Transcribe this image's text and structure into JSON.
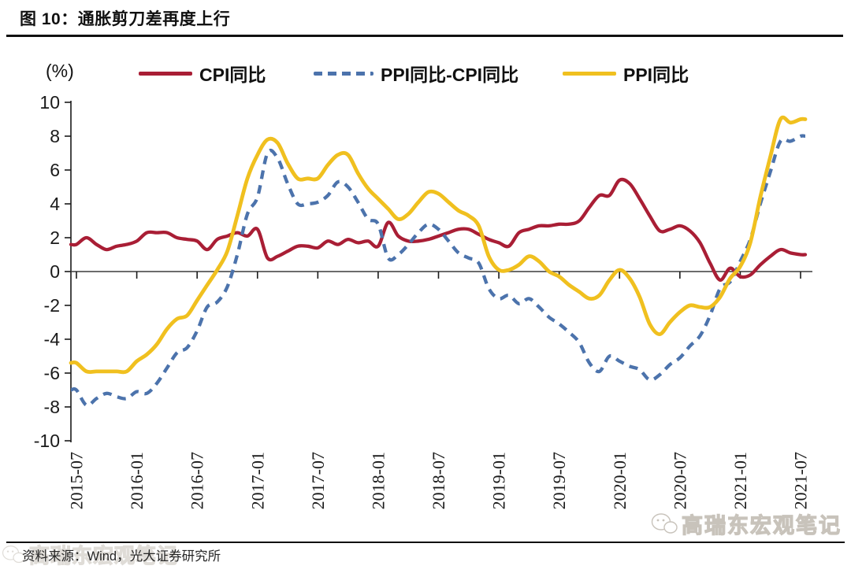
{
  "figure": {
    "title": "图 10：通胀剪刀差再度上行",
    "unit_label": "(%)",
    "source_note": "资料来源：Wind，光大证券研究所",
    "watermark": "高瑞东宏观笔记"
  },
  "legend": [
    {
      "label": "CPI同比",
      "color": "#A91E35",
      "style": "solid"
    },
    {
      "label": "PPI同比-CPI同比",
      "color": "#4C73AC",
      "style": "dashed"
    },
    {
      "label": "PPI同比",
      "color": "#F0C01F",
      "style": "solid"
    }
  ],
  "chart_data": {
    "type": "line",
    "title": "通胀剪刀差再度上行",
    "x_start": "2015-07",
    "x_end": "2021-07",
    "frequency": "monthly",
    "x_tick_labels": [
      "2015-07",
      "2016-01",
      "2016-07",
      "2017-01",
      "2017-07",
      "2018-01",
      "2018-07",
      "2019-01",
      "2019-07",
      "2020-01",
      "2020-07",
      "2021-01",
      "2021-07"
    ],
    "y_ticks": [
      10,
      8,
      6,
      4,
      2,
      0,
      -2,
      -4,
      -6,
      -8,
      -10
    ],
    "ylim": [
      -10,
      10
    ],
    "ylabel": "(%)",
    "grid": false,
    "legend_position": "top",
    "zero_line": true,
    "series": [
      {
        "name": "CPI同比",
        "color": "#A91E35",
        "style": "solid",
        "width": 4.3,
        "values": [
          1.6,
          2.0,
          1.6,
          1.3,
          1.5,
          1.6,
          1.8,
          2.3,
          2.3,
          2.3,
          2.0,
          1.9,
          1.8,
          1.3,
          1.9,
          2.1,
          2.3,
          2.1,
          2.5,
          0.8,
          0.9,
          1.2,
          1.5,
          1.5,
          1.4,
          1.8,
          1.6,
          1.9,
          1.7,
          1.8,
          1.5,
          2.9,
          2.1,
          1.8,
          1.8,
          1.9,
          2.1,
          2.3,
          2.5,
          2.5,
          2.2,
          1.9,
          1.7,
          1.5,
          2.3,
          2.5,
          2.7,
          2.7,
          2.8,
          2.8,
          3.0,
          3.8,
          4.5,
          4.5,
          5.4,
          5.2,
          4.3,
          3.3,
          2.4,
          2.5,
          2.7,
          2.4,
          1.7,
          0.5,
          -0.5,
          0.2,
          -0.3,
          -0.2,
          0.4,
          0.9,
          1.3,
          1.1,
          1.0
        ]
      },
      {
        "name": "PPI同比-CPI同比",
        "color": "#4C73AC",
        "style": "dashed",
        "width": 4.3,
        "values": [
          -7.0,
          -7.9,
          -7.5,
          -7.2,
          -7.4,
          -7.5,
          -7.1,
          -7.2,
          -6.6,
          -5.7,
          -4.8,
          -4.5,
          -3.5,
          -2.1,
          -1.8,
          -0.9,
          1.0,
          3.4,
          4.4,
          7.0,
          6.7,
          5.2,
          4.0,
          4.0,
          4.1,
          4.5,
          5.3,
          5.0,
          4.1,
          3.1,
          2.8,
          0.8,
          1.0,
          1.6,
          2.3,
          2.8,
          2.5,
          1.8,
          1.1,
          0.8,
          0.5,
          -1.0,
          -1.6,
          -1.4,
          -1.9,
          -1.6,
          -2.1,
          -2.7,
          -3.1,
          -3.6,
          -4.2,
          -5.4,
          -5.9,
          -5.0,
          -5.3,
          -5.6,
          -5.8,
          -6.4,
          -6.1,
          -5.5,
          -5.1,
          -4.4,
          -3.8,
          -2.6,
          -1.0,
          -0.6,
          0.6,
          1.9,
          4.0,
          5.9,
          7.7,
          7.7,
          8.0
        ]
      },
      {
        "name": "PPI同比",
        "color": "#F0C01F",
        "style": "solid",
        "width": 4.8,
        "values": [
          -5.4,
          -5.9,
          -5.9,
          -5.9,
          -5.9,
          -5.9,
          -5.3,
          -4.9,
          -4.3,
          -3.4,
          -2.8,
          -2.6,
          -1.7,
          -0.8,
          0.1,
          1.2,
          3.3,
          5.5,
          6.9,
          7.8,
          7.6,
          6.4,
          5.5,
          5.5,
          5.5,
          6.3,
          6.9,
          6.9,
          5.8,
          4.9,
          4.3,
          3.7,
          3.1,
          3.4,
          4.1,
          4.7,
          4.6,
          4.1,
          3.6,
          3.3,
          2.7,
          0.9,
          0.1,
          0.1,
          0.4,
          0.9,
          0.6,
          0.0,
          -0.3,
          -0.8,
          -1.2,
          -1.6,
          -1.4,
          -0.5,
          0.1,
          -0.4,
          -1.5,
          -3.1,
          -3.7,
          -3.0,
          -2.4,
          -2.0,
          -2.1,
          -2.1,
          -1.5,
          -0.4,
          0.3,
          1.7,
          4.4,
          6.8,
          9.0,
          8.8,
          9.0
        ]
      }
    ]
  }
}
